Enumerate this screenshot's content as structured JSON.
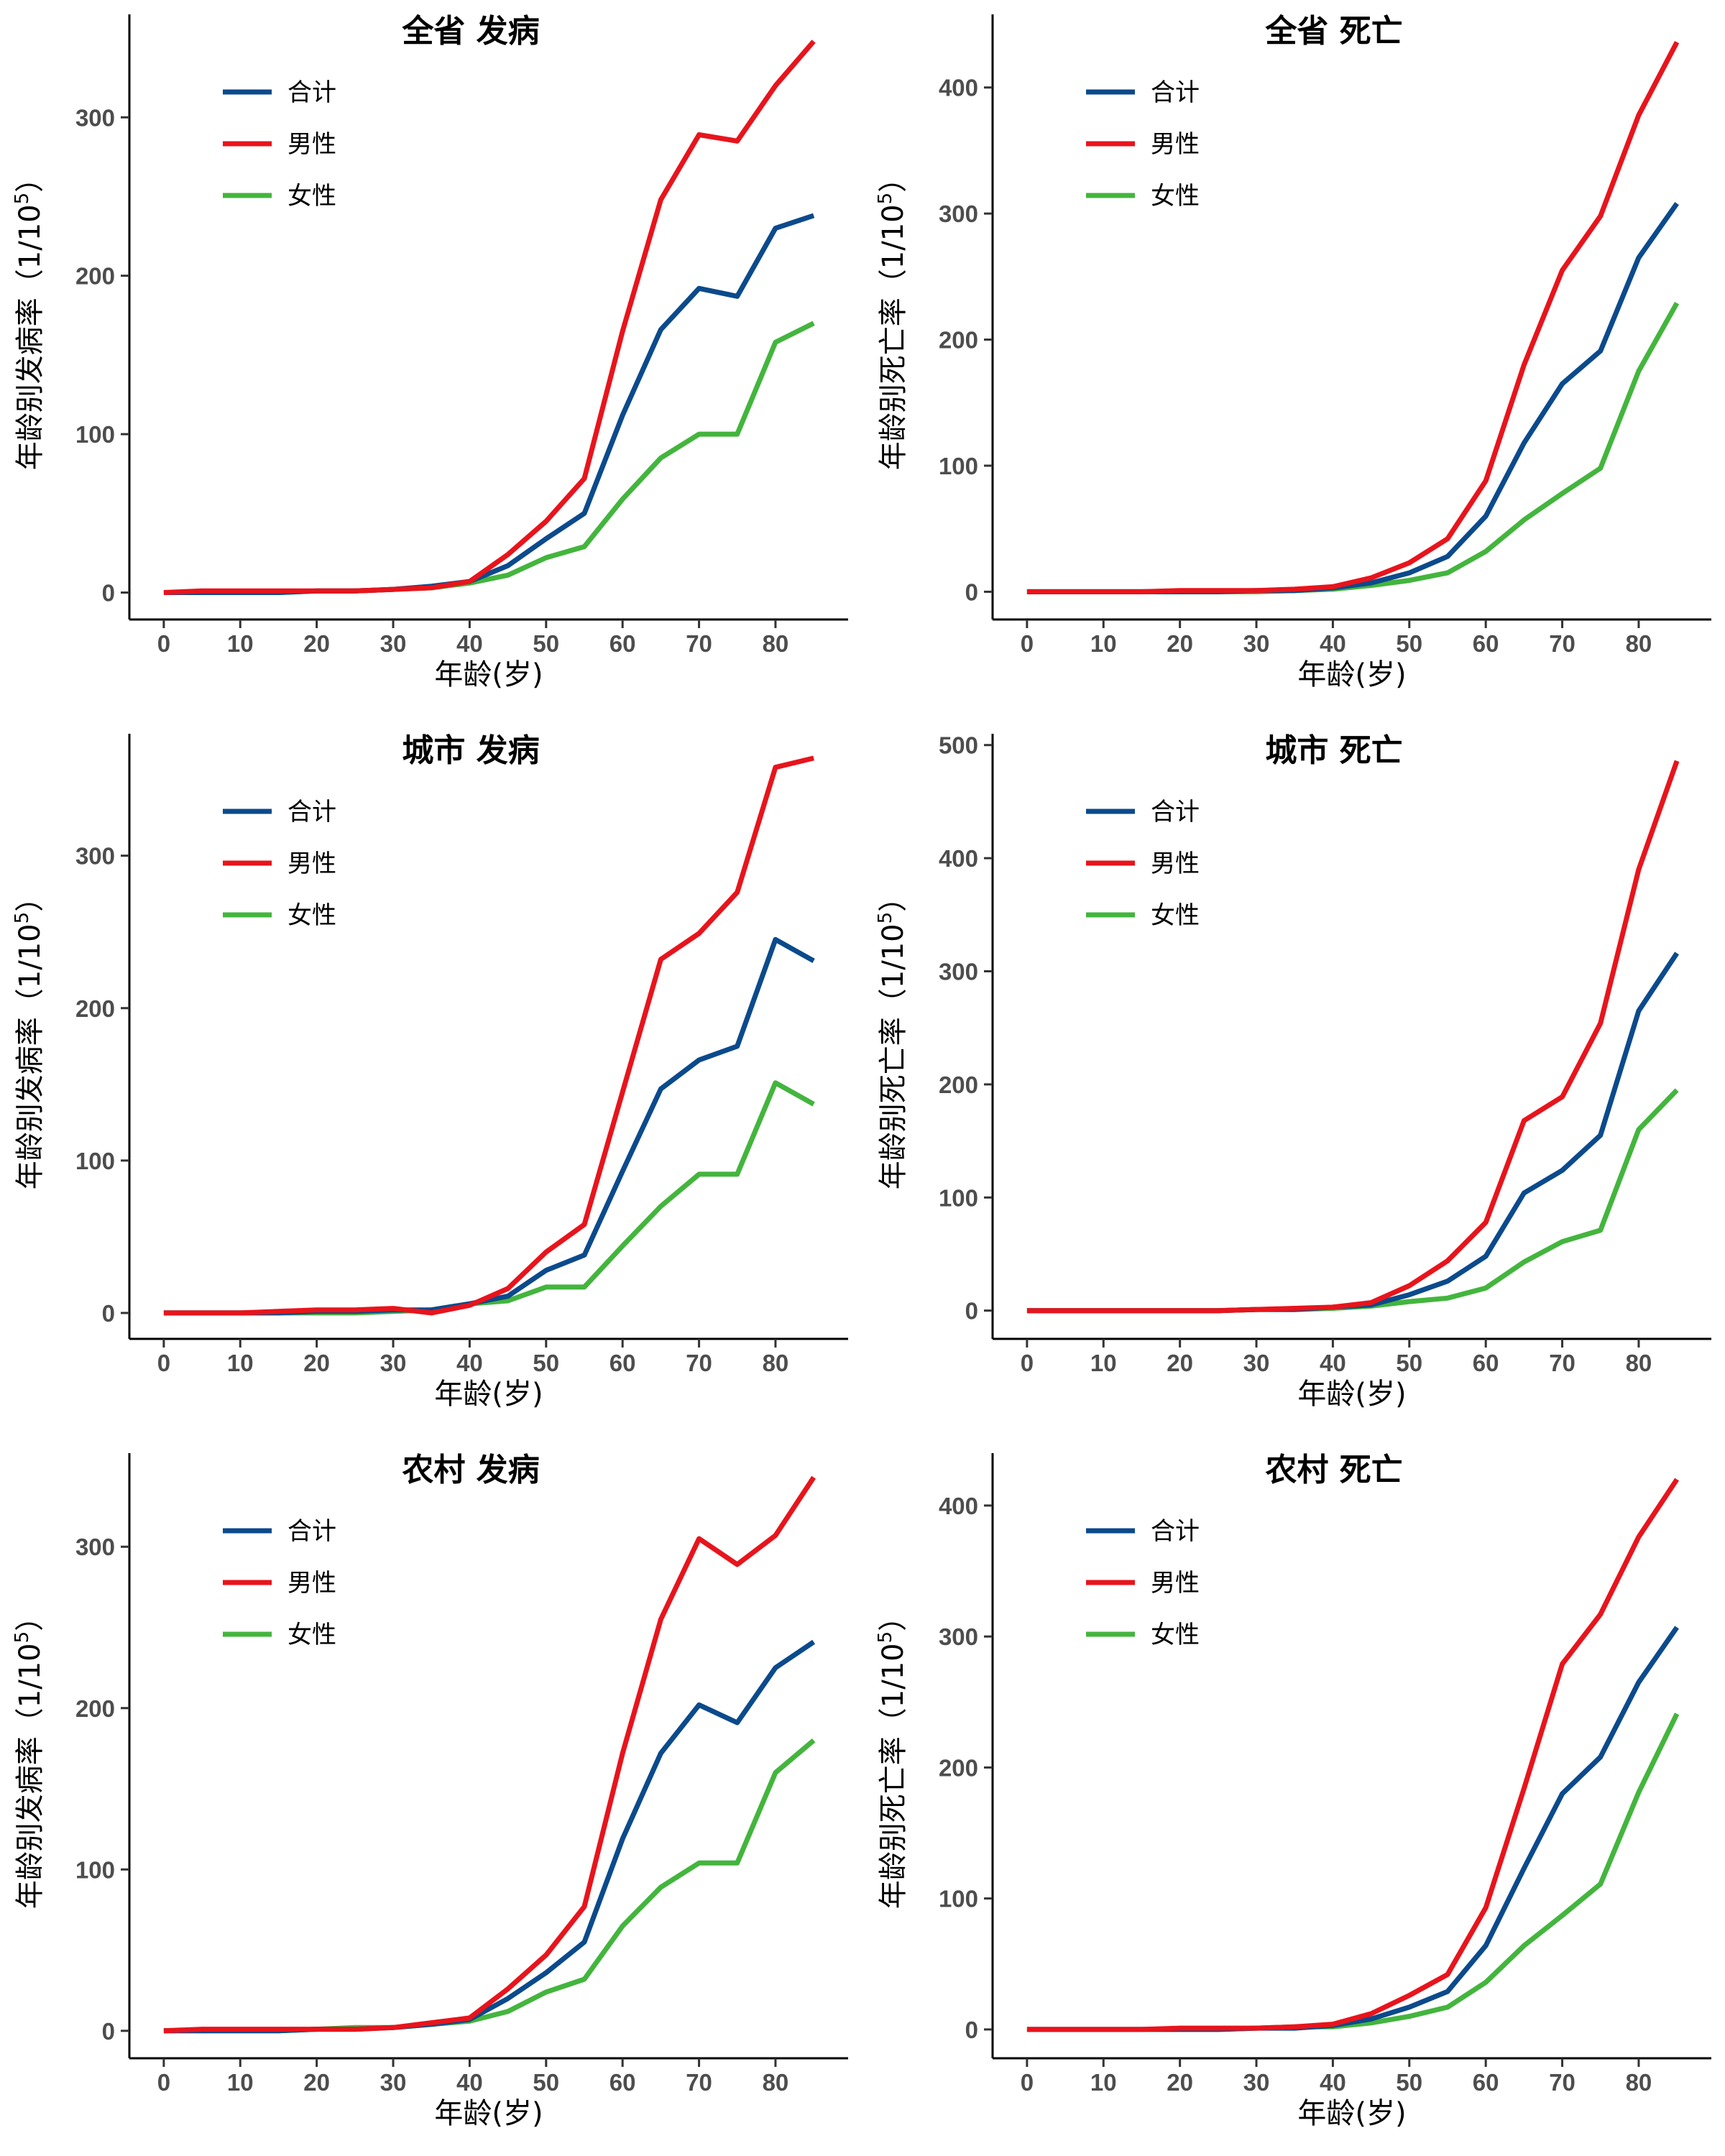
{
  "colors": {
    "total": "#0b4a8c",
    "male": "#e8141c",
    "female": "#43b53d",
    "axis": "#000000",
    "tick_text": "#4d4d4d"
  },
  "legend": {
    "total": "合计",
    "male": "男性",
    "female": "女性"
  },
  "chart_data": [
    {
      "type": "line",
      "title": "全省 发病",
      "xlabel": "年龄(岁)",
      "ylabel": {
        "main": "年龄别发病率（1/10",
        "sup": "5",
        "end": "）"
      },
      "x": [
        0,
        5,
        10,
        15,
        20,
        25,
        30,
        35,
        40,
        45,
        50,
        55,
        60,
        65,
        70,
        75,
        80,
        85
      ],
      "xlim": [
        -4.5,
        89.5
      ],
      "ylim": [
        -17,
        365
      ],
      "xticks": [
        0,
        10,
        20,
        30,
        40,
        50,
        60,
        70,
        80
      ],
      "yticks": [
        0,
        100,
        200,
        300
      ],
      "series": [
        {
          "key": "total",
          "name": "合计",
          "values": [
            0,
            0,
            0,
            0,
            1,
            1,
            2,
            4,
            7,
            17,
            34,
            50,
            112,
            166,
            192,
            187,
            230,
            238
          ]
        },
        {
          "key": "male",
          "name": "男性",
          "values": [
            0,
            1,
            1,
            1,
            1,
            1,
            2,
            3,
            7,
            24,
            45,
            72,
            165,
            248,
            289,
            285,
            320,
            348
          ]
        },
        {
          "key": "female",
          "name": "女性",
          "values": [
            0,
            0,
            0,
            0,
            1,
            1,
            2,
            3,
            6,
            11,
            22,
            29,
            59,
            85,
            100,
            100,
            158,
            170
          ]
        }
      ]
    },
    {
      "type": "line",
      "title": "全省 死亡",
      "xlabel": "年龄(岁)",
      "ylabel": {
        "main": "年龄别死亡率（1/10",
        "sup": "5",
        "end": "）"
      },
      "x": [
        0,
        5,
        10,
        15,
        20,
        25,
        30,
        35,
        40,
        45,
        50,
        55,
        60,
        65,
        70,
        75,
        80,
        85
      ],
      "xlim": [
        -4.5,
        89.5
      ],
      "ylim": [
        -22,
        458
      ],
      "xticks": [
        0,
        10,
        20,
        30,
        40,
        50,
        60,
        70,
        80
      ],
      "yticks": [
        0,
        100,
        200,
        300,
        400
      ],
      "series": [
        {
          "key": "total",
          "name": "合计",
          "values": [
            0,
            0,
            0,
            0,
            0,
            0,
            1,
            1,
            3,
            7,
            15,
            28,
            60,
            118,
            165,
            191,
            265,
            308
          ]
        },
        {
          "key": "male",
          "name": "男性",
          "values": [
            0,
            0,
            0,
            0,
            1,
            1,
            1,
            2,
            4,
            11,
            23,
            42,
            88,
            180,
            255,
            298,
            378,
            436
          ]
        },
        {
          "key": "female",
          "name": "女性",
          "values": [
            0,
            0,
            0,
            0,
            0,
            0,
            0,
            1,
            2,
            5,
            9,
            15,
            32,
            57,
            78,
            98,
            175,
            229
          ]
        }
      ]
    },
    {
      "type": "line",
      "title": "城市 发病",
      "xlabel": "年龄(岁)",
      "ylabel": {
        "main": "年龄别发病率（1/10",
        "sup": "5",
        "end": "）"
      },
      "x": [
        0,
        5,
        10,
        15,
        20,
        25,
        30,
        35,
        40,
        45,
        50,
        55,
        60,
        65,
        70,
        75,
        80,
        85
      ],
      "xlim": [
        -4.5,
        89.5
      ],
      "ylim": [
        -17,
        380
      ],
      "xticks": [
        0,
        10,
        20,
        30,
        40,
        50,
        60,
        70,
        80
      ],
      "yticks": [
        0,
        100,
        200,
        300
      ],
      "series": [
        {
          "key": "total",
          "name": "合计",
          "values": [
            0,
            0,
            0,
            0,
            1,
            1,
            2,
            2,
            6,
            11,
            28,
            38,
            93,
            147,
            166,
            175,
            245,
            231
          ]
        },
        {
          "key": "male",
          "name": "男性",
          "values": [
            0,
            0,
            0,
            1,
            2,
            2,
            3,
            0,
            5,
            16,
            40,
            58,
            145,
            232,
            249,
            276,
            358,
            364
          ]
        },
        {
          "key": "female",
          "name": "女性",
          "values": [
            0,
            0,
            0,
            0,
            0,
            0,
            1,
            2,
            6,
            8,
            17,
            17,
            44,
            70,
            91,
            91,
            151,
            137
          ]
        }
      ]
    },
    {
      "type": "line",
      "title": "城市 死亡",
      "xlabel": "年龄(岁)",
      "ylabel": {
        "main": "年龄别死亡率（1/10",
        "sup": "5",
        "end": "）"
      },
      "x": [
        0,
        5,
        10,
        15,
        20,
        25,
        30,
        35,
        40,
        45,
        50,
        55,
        60,
        65,
        70,
        75,
        80,
        85
      ],
      "xlim": [
        -4.5,
        89.5
      ],
      "ylim": [
        -25,
        510
      ],
      "xticks": [
        0,
        10,
        20,
        30,
        40,
        50,
        60,
        70,
        80
      ],
      "yticks": [
        0,
        100,
        200,
        300,
        400,
        500
      ],
      "series": [
        {
          "key": "total",
          "name": "合计",
          "values": [
            0,
            0,
            0,
            0,
            0,
            0,
            1,
            1,
            3,
            5,
            14,
            26,
            48,
            104,
            124,
            155,
            265,
            316
          ]
        },
        {
          "key": "male",
          "name": "男性",
          "values": [
            0,
            0,
            0,
            0,
            0,
            0,
            1,
            2,
            3,
            7,
            22,
            44,
            78,
            168,
            189,
            254,
            390,
            486
          ]
        },
        {
          "key": "female",
          "name": "女性",
          "values": [
            0,
            0,
            0,
            0,
            0,
            0,
            1,
            1,
            2,
            4,
            8,
            11,
            20,
            43,
            61,
            71,
            160,
            195
          ]
        }
      ]
    },
    {
      "type": "line",
      "title": "农村 发病",
      "xlabel": "年龄(岁)",
      "ylabel": {
        "main": "年龄别发病率（1/10",
        "sup": "5",
        "end": "）"
      },
      "x": [
        0,
        5,
        10,
        15,
        20,
        25,
        30,
        35,
        40,
        45,
        50,
        55,
        60,
        65,
        70,
        75,
        80,
        85
      ],
      "xlim": [
        -4.5,
        89.5
      ],
      "ylim": [
        -17,
        358
      ],
      "xticks": [
        0,
        10,
        20,
        30,
        40,
        50,
        60,
        70,
        80
      ],
      "yticks": [
        0,
        100,
        200,
        300
      ],
      "series": [
        {
          "key": "total",
          "name": "合计",
          "values": [
            0,
            0,
            0,
            0,
            1,
            1,
            2,
            4,
            7,
            20,
            36,
            55,
            119,
            172,
            202,
            191,
            225,
            241
          ]
        },
        {
          "key": "male",
          "name": "男性",
          "values": [
            0,
            1,
            1,
            1,
            1,
            1,
            2,
            5,
            8,
            26,
            47,
            77,
            172,
            255,
            305,
            289,
            307,
            343
          ]
        },
        {
          "key": "female",
          "name": "女性",
          "values": [
            0,
            0,
            0,
            0,
            1,
            2,
            2,
            4,
            6,
            12,
            24,
            32,
            65,
            89,
            104,
            104,
            160,
            180
          ]
        }
      ]
    },
    {
      "type": "line",
      "title": "农村 死亡",
      "xlabel": "年龄(岁)",
      "ylabel": {
        "main": "年龄别死亡率（1/10",
        "sup": "5",
        "end": "）"
      },
      "x": [
        0,
        5,
        10,
        15,
        20,
        25,
        30,
        35,
        40,
        45,
        50,
        55,
        60,
        65,
        70,
        75,
        80,
        85
      ],
      "xlim": [
        -4.5,
        89.5
      ],
      "ylim": [
        -22,
        440
      ],
      "xticks": [
        0,
        10,
        20,
        30,
        40,
        50,
        60,
        70,
        80
      ],
      "yticks": [
        0,
        100,
        200,
        300,
        400
      ],
      "series": [
        {
          "key": "total",
          "name": "合计",
          "values": [
            0,
            0,
            0,
            0,
            0,
            0,
            1,
            1,
            3,
            8,
            17,
            29,
            64,
            123,
            180,
            208,
            265,
            307
          ]
        },
        {
          "key": "male",
          "name": "男性",
          "values": [
            0,
            0,
            0,
            0,
            1,
            1,
            1,
            2,
            4,
            12,
            26,
            42,
            93,
            184,
            279,
            317,
            376,
            420
          ]
        },
        {
          "key": "female",
          "name": "女性",
          "values": [
            0,
            0,
            0,
            0,
            0,
            0,
            1,
            2,
            2,
            5,
            10,
            17,
            36,
            64,
            87,
            111,
            181,
            241
          ]
        }
      ]
    }
  ]
}
